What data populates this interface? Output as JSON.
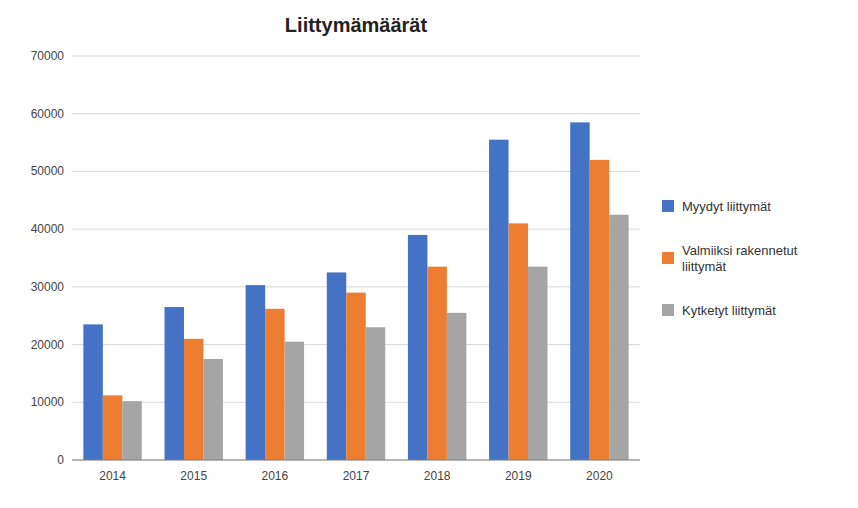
{
  "chart_data": {
    "type": "bar",
    "title": "Liittymämäärät",
    "categories": [
      "2014",
      "2015",
      "2016",
      "2017",
      "2018",
      "2019",
      "2020"
    ],
    "series": [
      {
        "name": "Myydyt liittymät",
        "color": "#4472c4",
        "values": [
          23500,
          26500,
          30300,
          32500,
          39000,
          55500,
          58500
        ]
      },
      {
        "name": "Valmiiksi rakennetut\nliittymät",
        "color": "#ed7d31",
        "values": [
          11200,
          21000,
          26200,
          29000,
          33500,
          41000,
          52000
        ]
      },
      {
        "name": "Kytketyt liittymät",
        "color": "#a5a5a5",
        "values": [
          10200,
          17500,
          20500,
          23000,
          25500,
          33500,
          42500
        ]
      }
    ],
    "ylim": [
      0,
      70000
    ],
    "yticks": [
      0,
      10000,
      20000,
      30000,
      40000,
      50000,
      60000,
      70000
    ],
    "grid": true,
    "legend": "right"
  }
}
